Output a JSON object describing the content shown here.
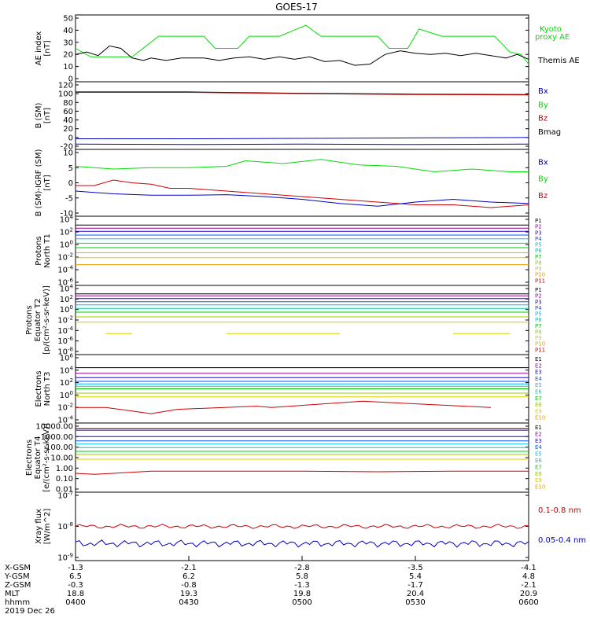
{
  "title": "GOES-17",
  "colors": {
    "black": "#000000",
    "green": "#00dd00",
    "red": "#cc0000",
    "blue": "#0000cc"
  },
  "band_colors": [
    "#000000",
    "#990099",
    "#2200cc",
    "#0055ff",
    "#00bbee",
    "#00ccaa",
    "#00cc00",
    "#99cc00",
    "#ddcc00",
    "#ee9900",
    "#cc0000",
    "#990000"
  ],
  "panels": [
    {
      "id": "ae",
      "ylabel": [
        "AE index",
        "[nT]"
      ],
      "type": "linear",
      "ylim": [
        0,
        50
      ],
      "ticks": [
        "50",
        "40",
        "30",
        "20",
        "10",
        "0"
      ],
      "legend": [
        {
          "text": "Kyoto",
          "color": "green"
        },
        {
          "text": "proxy AE",
          "color": "green"
        },
        {
          "text": "Themis AE",
          "color": "black"
        }
      ]
    },
    {
      "id": "bsm",
      "ylabel": [
        "B (SM)",
        "[nT]"
      ],
      "type": "linear",
      "ylim": [
        -20,
        120
      ],
      "ticks": [
        "120",
        "100",
        "80",
        "60",
        "40",
        "20",
        "0",
        "-20"
      ],
      "legend": [
        {
          "text": "Bx",
          "color": "blue"
        },
        {
          "text": "By",
          "color": "green"
        },
        {
          "text": "Bz",
          "color": "red"
        },
        {
          "text": "Bmag",
          "color": "black"
        }
      ]
    },
    {
      "id": "bigrf",
      "ylabel": [
        "B (SM)-IGRF (SM)",
        "[nT]"
      ],
      "type": "linear",
      "ylim": [
        -12,
        10
      ],
      "ticks": [
        "10",
        "5",
        "0",
        "-5",
        "-10"
      ],
      "legend": [
        {
          "text": "Bx",
          "color": "blue"
        },
        {
          "text": "By",
          "color": "green"
        },
        {
          "text": "Bz",
          "color": "red"
        }
      ]
    },
    {
      "id": "pnt1",
      "ylabel": [
        "Protons",
        "North T1"
      ],
      "type": "log",
      "ticks": [
        "10^4",
        "10^2",
        "10^0",
        "10^-2",
        "10^-4",
        "10^-6"
      ],
      "legend_labels": [
        "P1",
        "P2",
        "P3",
        "P4",
        "P5",
        "P6",
        "P7",
        "P8",
        "P9",
        "P10",
        "P11"
      ]
    },
    {
      "id": "pet2",
      "ylabel": [
        "Protons",
        "Equator T2",
        "[p/(cm²-s-sr-keV)]"
      ],
      "type": "log",
      "ticks": [
        "10^4",
        "10^2",
        "10^0",
        "10^-2",
        "10^-4",
        "10^-6",
        "10^-8"
      ],
      "legend_labels": [
        "P1",
        "P2",
        "P3",
        "P4",
        "P5",
        "P6",
        "P7",
        "P8",
        "P9",
        "P10",
        "P11"
      ]
    },
    {
      "id": "ent3",
      "ylabel": [
        "Electrons",
        "North T3"
      ],
      "type": "log",
      "ticks": [
        "10^6",
        "10^4",
        "10^2",
        "10^0",
        "10^-2",
        "10^-4"
      ],
      "legend_labels": [
        "E1",
        "E2",
        "E3",
        "E4",
        "E5",
        "E6",
        "E7",
        "E8",
        "E9",
        "E10"
      ]
    },
    {
      "id": "eet4",
      "ylabel": [
        "Electrons",
        "Equator T4",
        "[e/(cm²-s-sr-keV)]"
      ],
      "type": "log",
      "ticks": [
        "10000.00",
        "1000.00",
        "100.00",
        "10.00",
        "1.00",
        "0.10",
        "0.01"
      ],
      "legend_labels": [
        "E1",
        "E2",
        "E3",
        "E4",
        "E5",
        "E6",
        "E7",
        "E8",
        "E9",
        "E10"
      ]
    },
    {
      "id": "xray",
      "ylabel": [
        "Xray flux",
        "[W/m^2]"
      ],
      "type": "log",
      "ticks": [
        "10^-7",
        "10^-8",
        "10^-9"
      ],
      "legend": [
        {
          "text": "0.1-0.8 nm",
          "color": "red"
        },
        {
          "text": "0.05-0.4 nm",
          "color": "blue"
        }
      ]
    }
  ],
  "xaxis": {
    "rows": [
      {
        "label": "X-GSM",
        "values": [
          "-1.3",
          "-2.1",
          "-2.8",
          "-3.5",
          "-4.1"
        ]
      },
      {
        "label": "Y-GSM",
        "values": [
          "6.5",
          "6.2",
          "5.8",
          "5.4",
          "4.8"
        ]
      },
      {
        "label": "Z-GSM",
        "values": [
          "-0.3",
          "-0.8",
          "-1.3",
          "-1.7",
          "-2.1"
        ]
      },
      {
        "label": "MLT",
        "values": [
          "18.8",
          "19.3",
          "19.8",
          "20.4",
          "20.9"
        ]
      },
      {
        "label": "hhmm",
        "values": [
          "0400",
          "0430",
          "0500",
          "0530",
          "0600"
        ]
      }
    ],
    "date": "2019 Dec 26"
  },
  "chart_data": {
    "type": "line",
    "title": "GOES-17",
    "x_range": [
      "0400",
      "0600"
    ],
    "ae": {
      "kyoto_proxy_ae": [
        [
          0,
          25
        ],
        [
          4,
          18
        ],
        [
          15,
          18
        ],
        [
          22,
          35
        ],
        [
          34,
          35
        ],
        [
          37,
          25
        ],
        [
          43,
          25
        ],
        [
          46,
          35
        ],
        [
          54,
          35
        ],
        [
          61,
          44
        ],
        [
          65,
          35
        ],
        [
          80,
          35
        ],
        [
          83,
          25
        ],
        [
          88,
          25
        ],
        [
          91,
          41
        ],
        [
          97,
          35
        ],
        [
          111,
          35
        ],
        [
          115,
          22
        ],
        [
          118,
          20
        ],
        [
          120,
          12
        ]
      ],
      "themis_ae": [
        [
          0,
          20
        ],
        [
          3,
          22
        ],
        [
          6,
          19
        ],
        [
          9,
          27
        ],
        [
          12,
          25
        ],
        [
          15,
          17
        ],
        [
          18,
          15
        ],
        [
          20,
          17
        ],
        [
          24,
          15
        ],
        [
          28,
          17
        ],
        [
          34,
          17
        ],
        [
          38,
          15
        ],
        [
          42,
          17
        ],
        [
          46,
          18
        ],
        [
          50,
          16
        ],
        [
          54,
          18
        ],
        [
          58,
          16
        ],
        [
          62,
          18
        ],
        [
          66,
          14
        ],
        [
          70,
          15
        ],
        [
          74,
          11
        ],
        [
          78,
          12
        ],
        [
          82,
          20
        ],
        [
          86,
          23
        ],
        [
          90,
          21
        ],
        [
          94,
          20
        ],
        [
          98,
          21
        ],
        [
          102,
          19
        ],
        [
          106,
          21
        ],
        [
          110,
          19
        ],
        [
          114,
          17
        ],
        [
          117,
          20
        ],
        [
          120,
          16
        ]
      ]
    },
    "b_sm": {
      "Bx": [
        [
          0,
          -3
        ],
        [
          30,
          -3
        ],
        [
          60,
          -2
        ],
        [
          90,
          -1
        ],
        [
          120,
          0
        ]
      ],
      "By": [
        [
          0,
          -15
        ],
        [
          30,
          -16
        ],
        [
          60,
          -15
        ],
        [
          90,
          -16
        ],
        [
          120,
          -15
        ]
      ],
      "Bz": [
        [
          0,
          103
        ],
        [
          30,
          103
        ],
        [
          60,
          100
        ],
        [
          90,
          98
        ],
        [
          120,
          97
        ]
      ],
      "Bmag": [
        [
          0,
          104
        ],
        [
          30,
          104
        ],
        [
          60,
          101
        ],
        [
          90,
          99
        ],
        [
          120,
          98
        ]
      ]
    },
    "b_minus_igrf": {
      "Bx": [
        [
          0,
          -4
        ],
        [
          10,
          -5
        ],
        [
          20,
          -5.5
        ],
        [
          30,
          -5.5
        ],
        [
          40,
          -5.3
        ],
        [
          50,
          -6
        ],
        [
          60,
          -7
        ],
        [
          70,
          -8.5
        ],
        [
          80,
          -9.5
        ],
        [
          90,
          -8
        ],
        [
          100,
          -7
        ],
        [
          110,
          -8
        ],
        [
          120,
          -8.5
        ]
      ],
      "By": [
        [
          0,
          5
        ],
        [
          10,
          4
        ],
        [
          20,
          4.5
        ],
        [
          30,
          4.5
        ],
        [
          40,
          5
        ],
        [
          45,
          7
        ],
        [
          55,
          6
        ],
        [
          65,
          7.5
        ],
        [
          75,
          5.5
        ],
        [
          85,
          5
        ],
        [
          95,
          3
        ],
        [
          105,
          4
        ],
        [
          115,
          3
        ],
        [
          120,
          3
        ]
      ],
      "Bz": [
        [
          0,
          -2
        ],
        [
          5,
          -2
        ],
        [
          10,
          0
        ],
        [
          15,
          -1
        ],
        [
          20,
          -1.5
        ],
        [
          25,
          -3
        ],
        [
          30,
          -3
        ],
        [
          40,
          -4
        ],
        [
          50,
          -5
        ],
        [
          60,
          -6
        ],
        [
          70,
          -7
        ],
        [
          80,
          -8
        ],
        [
          90,
          -9
        ],
        [
          100,
          -9
        ],
        [
          110,
          -10
        ],
        [
          120,
          -9
        ]
      ]
    },
    "protons_north_t1": {
      "levels_log10": [
        3.1,
        2.6,
        2.1,
        1.5,
        0.9,
        0.2,
        -0.5,
        -1.3,
        -2.1,
        -3.2
      ],
      "p9_log10": -3.2
    },
    "protons_equator_t2": {
      "levels_log10": [
        3.0,
        2.6,
        2.1,
        1.5,
        0.9,
        0.2,
        -0.5,
        -1.4,
        -2.4
      ],
      "p9_log10": -4.6
    },
    "electrons_north_t3": {
      "levels_log10": [
        4.4,
        3.5,
        2.8,
        2.2,
        1.8,
        1.4,
        1.0,
        0.3,
        -0.3
      ],
      "e10_log10": [
        [
          0,
          -2.0
        ],
        [
          4,
          -2.0
        ],
        [
          8,
          -2.0
        ],
        [
          14,
          -2.5
        ],
        [
          20,
          -3.0
        ],
        [
          27,
          -2.3
        ],
        [
          48,
          -1.8
        ],
        [
          52,
          -2.0
        ],
        [
          76,
          -1.0
        ],
        [
          110,
          -2.0
        ]
      ]
    },
    "electrons_equator_t4": {
      "levels_log10": [
        3.75,
        3.6,
        3.0,
        2.6,
        2.3,
        1.95,
        1.6,
        1.3,
        0.85
      ],
      "e10_log10": [
        [
          0,
          -0.5
        ],
        [
          5,
          -0.6
        ],
        [
          10,
          -0.5
        ],
        [
          20,
          -0.3
        ],
        [
          40,
          -0.3
        ],
        [
          60,
          -0.3
        ],
        [
          80,
          -0.35
        ],
        [
          100,
          -0.3
        ],
        [
          120,
          -0.3
        ]
      ]
    },
    "xray": {
      "ch_0.1_0.8nm_log10": -8.0,
      "ch_0.05_0.4nm_log10": -8.55
    }
  }
}
